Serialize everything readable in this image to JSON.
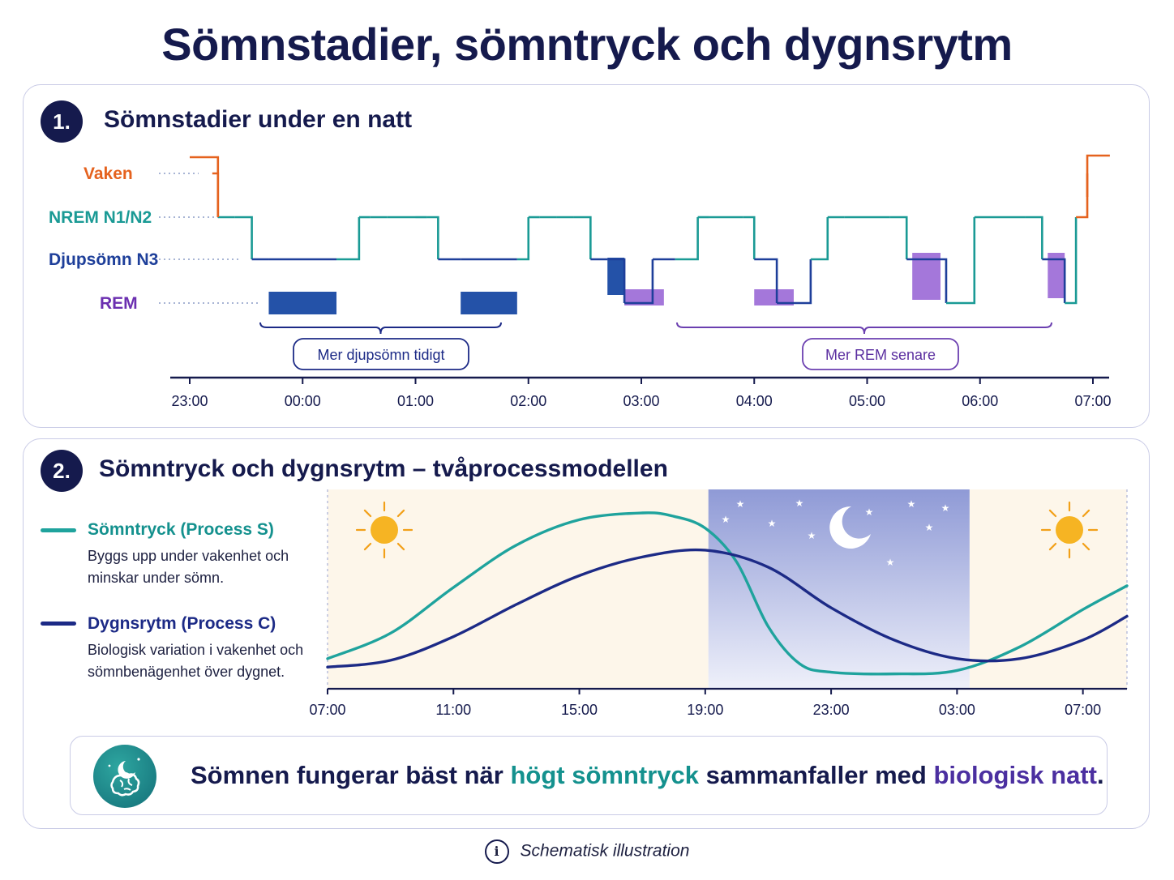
{
  "title": "Sömnstadier, sömntryck och dygnsrytm",
  "sections": [
    {
      "number": "1.",
      "title": "Sömnstadier under en natt"
    },
    {
      "number": "2.",
      "title": "Sömntryck och dygnsrytm – tvåprocessmodellen"
    }
  ],
  "colors": {
    "navy": "#151a4d",
    "wake": "#e5621e",
    "nrem": "#1a9a95",
    "deep": "#1e3f9a",
    "rem": "#9b6fd6",
    "process_s": "#1fa39d",
    "process_c": "#1c2a86",
    "day_bg": "#fdf6ea",
    "night_bg": "#a9b2de"
  },
  "chart_data": [
    {
      "type": "line",
      "title": "Sömnstadier under en natt",
      "stages": [
        "Vaken",
        "NREM N1/N2",
        "Djupsömn N3",
        "REM"
      ],
      "x_ticks": [
        "23:00",
        "00:00",
        "01:00",
        "02:00",
        "03:00",
        "04:00",
        "05:00",
        "06:00",
        "07:00"
      ],
      "x_range_hours": [
        23.0,
        31.0
      ],
      "hypnogram": [
        [
          23.2,
          "Vaken"
        ],
        [
          23.25,
          "NREM N1/N2"
        ],
        [
          23.4,
          "NREM N1/N2"
        ],
        [
          23.55,
          "Djupsömn N3"
        ],
        [
          23.7,
          "Deep"
        ],
        [
          24.3,
          "Djupsömn N3"
        ],
        [
          24.5,
          "NREM N1/N2"
        ],
        [
          24.6,
          "NREM N1/N2"
        ],
        [
          24.75,
          "NREM N1/N2"
        ],
        [
          25.0,
          "NREM N1/N2"
        ],
        [
          25.1,
          "NREM N1/N2"
        ],
        [
          25.2,
          "Djupsömn N3"
        ],
        [
          25.4,
          "Deep"
        ],
        [
          25.9,
          "Djupsömn N3"
        ],
        [
          26.0,
          "NREM N1/N2"
        ],
        [
          26.1,
          "NREM N1/N2"
        ],
        [
          26.25,
          "NREM N1/N2"
        ],
        [
          26.4,
          "NREM N1/N2"
        ],
        [
          26.55,
          "Djupsömn N3"
        ],
        [
          26.7,
          "Djupsömn N3"
        ],
        [
          26.85,
          "REM"
        ],
        [
          27.1,
          "Djupsömn N3"
        ],
        [
          27.3,
          "Djupsömn N3"
        ],
        [
          27.5,
          "NREM N1/N2"
        ],
        [
          27.6,
          "NREM N1/N2"
        ],
        [
          27.9,
          "NREM N1/N2"
        ],
        [
          28.0,
          "Djupsömn N3"
        ],
        [
          28.2,
          "REM"
        ],
        [
          28.5,
          "Djupsömn N3"
        ],
        [
          28.65,
          "NREM N1/N2"
        ],
        [
          28.8,
          "NREM N1/N2"
        ],
        [
          29.2,
          "NREM N1/N2"
        ],
        [
          29.35,
          "Djupsömn N3"
        ],
        [
          29.7,
          "REM"
        ],
        [
          29.95,
          "NREM N1/N2"
        ],
        [
          30.4,
          "NREM N1/N2"
        ],
        [
          30.55,
          "Djupsömn N3"
        ],
        [
          30.75,
          "REM"
        ],
        [
          30.85,
          "NREM N1/N2"
        ],
        [
          30.95,
          "Vaken"
        ]
      ],
      "deep_sleep_blocks": [
        [
          23.7,
          24.3
        ],
        [
          25.4,
          25.9
        ],
        [
          26.7,
          26.85
        ]
      ],
      "rem_blocks": [
        [
          26.85,
          27.2
        ],
        [
          28.0,
          28.35
        ],
        [
          29.4,
          29.65
        ],
        [
          30.6,
          30.75
        ]
      ],
      "annotations": [
        "Mer djupsömn tidigt",
        "Mer REM senare"
      ]
    },
    {
      "type": "line",
      "title": "Sömntryck och dygnsrytm – tvåprocessmodellen",
      "x_ticks": [
        "07:00",
        "11:00",
        "15:00",
        "19:00",
        "23:00",
        "03:00",
        "07:00"
      ],
      "x_range_hours": [
        7,
        32.4
      ],
      "y_range": [
        0,
        1
      ],
      "night_period_hours": [
        19.1,
        27.4
      ],
      "series": [
        {
          "name": "Sömntryck (Process S)",
          "description": "Byggs upp under vakenhet och minskar under sömn.",
          "x": [
            7,
            9,
            11,
            13,
            15,
            17,
            18,
            19,
            20,
            21,
            22,
            23,
            25,
            27,
            29,
            31,
            32.4
          ],
          "values": [
            0.13,
            0.28,
            0.55,
            0.8,
            0.95,
            0.99,
            0.97,
            0.9,
            0.7,
            0.32,
            0.1,
            0.05,
            0.04,
            0.06,
            0.2,
            0.42,
            0.56
          ]
        },
        {
          "name": "Dygnsrytm (Process C)",
          "description": "Biologisk variation i vakenhet och sömnbenägenhet över dygnet.",
          "x": [
            7,
            9,
            11,
            13,
            15,
            17,
            19,
            21,
            23,
            25,
            27,
            29,
            31,
            32.4
          ],
          "values": [
            0.08,
            0.12,
            0.26,
            0.45,
            0.62,
            0.73,
            0.77,
            0.67,
            0.43,
            0.24,
            0.13,
            0.13,
            0.24,
            0.38
          ]
        }
      ]
    }
  ],
  "callout": {
    "before": "Sömnen fungerar bäst när ",
    "highlight1": "högt sömntryck",
    "middle": " sammanfaller med ",
    "highlight2": "biologisk natt",
    "after": "."
  },
  "footnote": "Schematisk illustration",
  "icons": {
    "info": "info-icon",
    "sun": "sun-icon",
    "moon": "moon-icon",
    "brain": "brain-moon-icon"
  }
}
